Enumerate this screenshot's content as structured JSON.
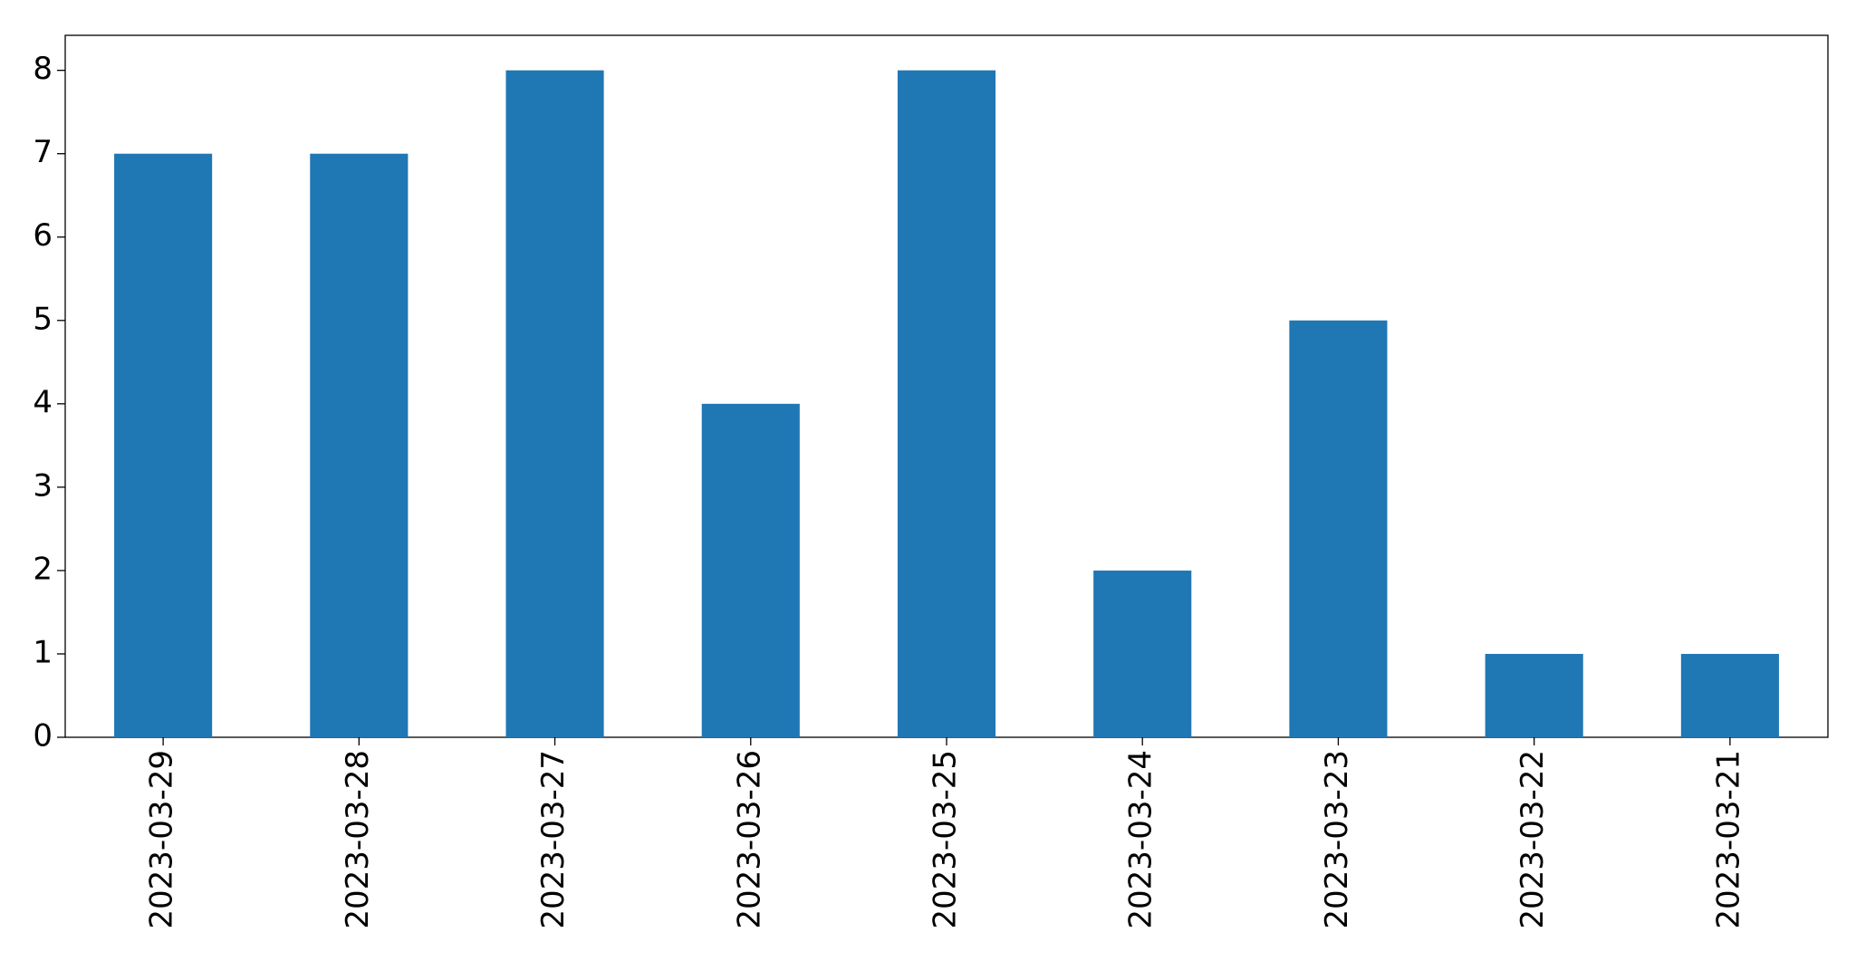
{
  "chart_data": {
    "type": "bar",
    "categories": [
      "2023-03-29",
      "2023-03-28",
      "2023-03-27",
      "2023-03-26",
      "2023-03-25",
      "2023-03-24",
      "2023-03-23",
      "2023-03-22",
      "2023-03-21"
    ],
    "values": [
      7,
      7,
      8,
      4,
      8,
      2,
      5,
      1,
      1
    ],
    "color": "#1f77b4",
    "ylim": [
      0,
      8.42
    ],
    "yticks": [
      0,
      1,
      2,
      3,
      4,
      5,
      6,
      7,
      8
    ],
    "grid": false
  }
}
